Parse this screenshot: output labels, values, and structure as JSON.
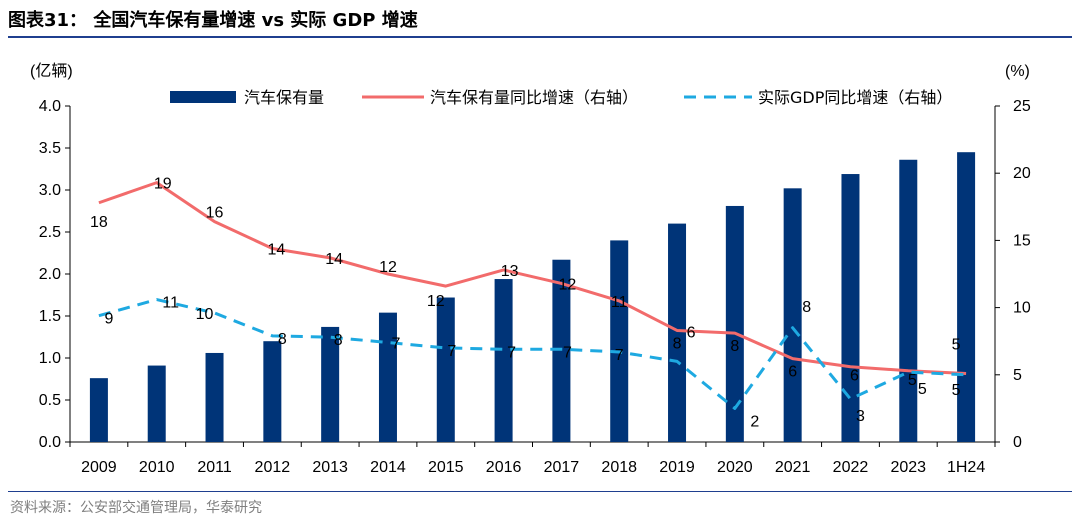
{
  "header": {
    "title": "图表31： 全国汽车保有量增速 vs 实际 GDP 增速"
  },
  "footer": {
    "source": "资料来源：公安部交通管理局，华泰研究"
  },
  "chart_data": {
    "type": "bar",
    "categories": [
      "2009",
      "2010",
      "2011",
      "2012",
      "2013",
      "2014",
      "2015",
      "2016",
      "2017",
      "2018",
      "2019",
      "2020",
      "2021",
      "2022",
      "2023",
      "1H24"
    ],
    "left_axis": {
      "unit": "(亿辆)",
      "ylim": [
        0,
        4.0
      ],
      "ticks": [
        "0.0",
        "0.5",
        "1.0",
        "1.5",
        "2.0",
        "2.5",
        "3.0",
        "3.5",
        "4.0"
      ]
    },
    "right_axis": {
      "unit": "(%)",
      "ylim": [
        0,
        25
      ],
      "ticks": [
        "0",
        "5",
        "10",
        "15",
        "20",
        "25"
      ]
    },
    "grid": false,
    "legend_position": "top",
    "colors": {
      "bar": "#003478",
      "car_growth": "#f26b6b",
      "gdp_growth": "#1ea9e1",
      "rule": "#1f3f8f"
    },
    "series": [
      {
        "name": "汽车保有量",
        "type": "bar",
        "axis": "left",
        "values": [
          0.76,
          0.91,
          1.06,
          1.2,
          1.37,
          1.54,
          1.72,
          1.94,
          2.17,
          2.4,
          2.6,
          2.81,
          3.02,
          3.19,
          3.36,
          3.45
        ]
      },
      {
        "name": "汽车保有量同比增速（右轴）",
        "type": "line",
        "style": "solid",
        "axis": "right",
        "values": [
          17.8,
          19.3,
          16.4,
          14.4,
          13.7,
          12.5,
          11.6,
          12.8,
          11.8,
          10.5,
          8.3,
          8.1,
          6.2,
          5.6,
          5.3,
          5.1
        ],
        "labels": [
          "18",
          "19",
          "16",
          "14",
          "14",
          "12",
          "12",
          "13",
          "12",
          "11",
          "8",
          "8",
          "6",
          "6",
          "5",
          "5"
        ]
      },
      {
        "name": "实际GDP同比增速（右轴）",
        "type": "line",
        "style": "dashed",
        "axis": "right",
        "values": [
          9.4,
          10.6,
          9.6,
          7.9,
          7.8,
          7.4,
          7.0,
          6.9,
          6.9,
          6.7,
          6.0,
          2.5,
          8.5,
          3.2,
          5.2,
          5.0
        ],
        "labels": [
          "9",
          "11",
          "10",
          "8",
          "8",
          "7",
          "7",
          "7",
          "7",
          "7",
          "6",
          "2",
          "8",
          "3",
          "5",
          "5"
        ]
      }
    ]
  }
}
